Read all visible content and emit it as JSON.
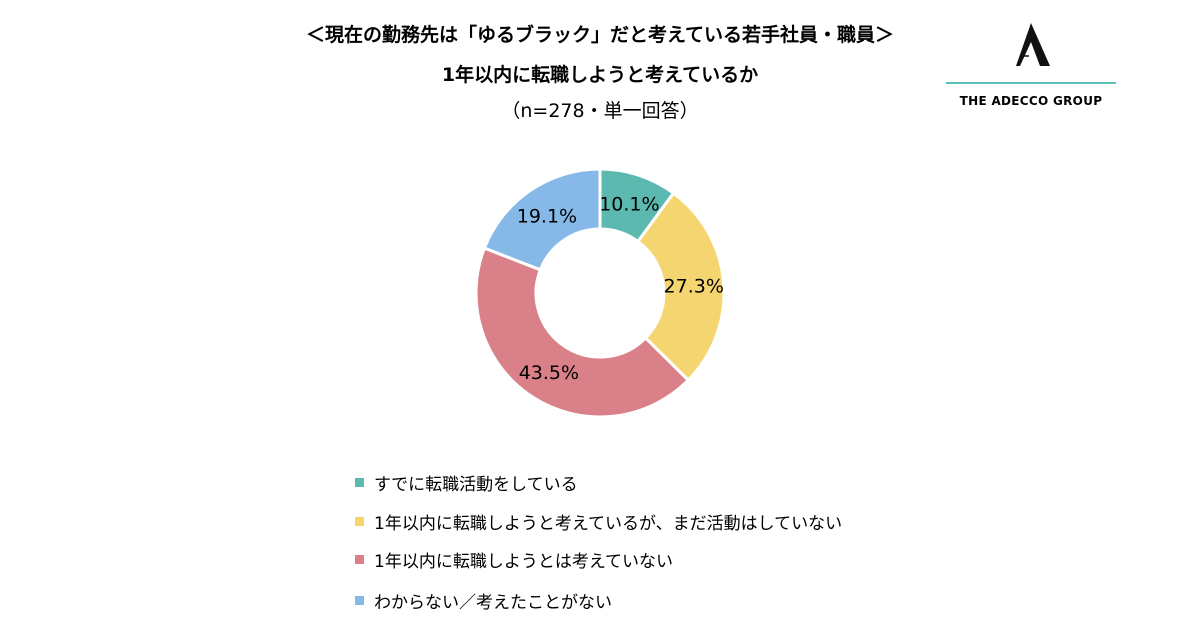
{
  "title": "＜現在の勤務先は「ゆるブラック」だと考えている若手社員・職員＞",
  "subtitle": "1年以内に転職しようと考えているか",
  "note": "（n=278・単一回答）",
  "logo": {
    "text": "THE ADECCO GROUP",
    "mark": "A",
    "accent": "#5BC2BA"
  },
  "chart_data": {
    "type": "pie",
    "donut": true,
    "title": "＜現在の勤務先は「ゆるブラック」だと考えている若手社員・職員＞ 1年以内に転職しようと考えているか",
    "categories": [
      "すでに転職活動をしている",
      "1年以内に転職しようと考えているが、まだ活動はしていない",
      "1年以内に転職しようとは考えていない",
      "わからない／考えたことがない"
    ],
    "values": [
      10.1,
      27.3,
      43.5,
      19.1
    ],
    "labels": [
      "10.1%",
      "27.3%",
      "43.5%",
      "19.1%"
    ],
    "colors": [
      "#5CB9AF",
      "#F5D570",
      "#D98088",
      "#86B9E7"
    ],
    "legend": "bottom"
  }
}
